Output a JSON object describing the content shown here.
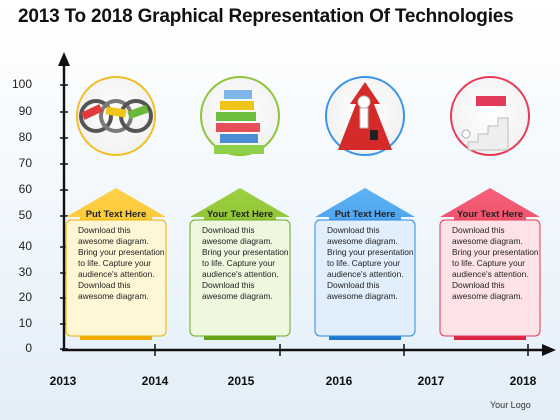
{
  "title": "2013 To 2018 Graphical Representation Of Technologies",
  "y_axis_ticks": [
    "0",
    "10",
    "20",
    "30",
    "40",
    "50",
    "60",
    "70",
    "80",
    "90",
    "100"
  ],
  "x_axis_ticks": [
    "2013",
    "2014",
    "2015",
    "2016",
    "2017",
    "2018"
  ],
  "cards": [
    {
      "heading": "Put Text Here",
      "body": "Download this awesome diagram. Bring your presentation to life. Capture your audience's attention. Download this awesome diagram.",
      "color": "#f2b300",
      "icon": "partnership-leadership-success-icon"
    },
    {
      "heading": "Your Text Here",
      "body": "Download this awesome diagram. Bring your presentation to life. Capture your audience's attention. Download this awesome diagram.",
      "color": "#79b61f",
      "icon": "team-plan-career-skills-brand-success-icon"
    },
    {
      "heading": "Put Text Here",
      "body": "Download this awesome diagram. Bring your presentation to life. Capture your audience's attention. Download this awesome diagram.",
      "color": "#2e8ee0",
      "icon": "person-on-rising-arrow-icon"
    },
    {
      "heading": "Your Text Here",
      "body": "Download this awesome diagram. Bring your presentation to life. Capture your audience's attention. Download this awesome diagram.",
      "color": "#e63a57",
      "icon": "stairs-to-top-success-icon"
    }
  ],
  "footer_logo": "Your Logo"
}
